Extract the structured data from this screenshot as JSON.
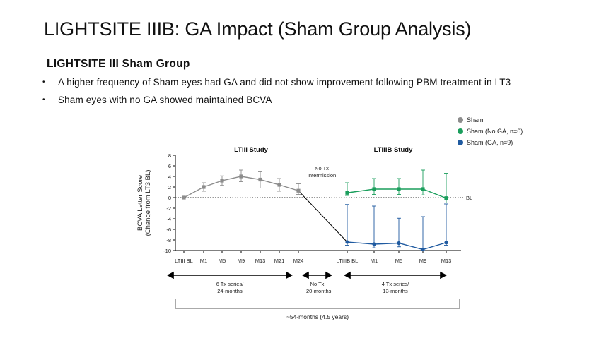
{
  "slide": {
    "title": "LIGHTSITE IIIB: GA Impact (Sham Group Analysis)",
    "subtitle": "LIGHTSITE III Sham Group",
    "bullets": [
      "A higher frequency of Sham eyes had GA and did not show improvement following PBM treatment in LT3",
      "Sham eyes with no GA showed maintained BCVA"
    ]
  },
  "chart_data": {
    "type": "line",
    "ylabel": "BCVA Letter Score\n(Change from LT3 BL)",
    "ylim": [
      -10,
      8
    ],
    "yticks": [
      8,
      6,
      4,
      2,
      0,
      -2,
      -4,
      -6,
      -8,
      -10
    ],
    "baseline_label": "BL",
    "panel_titles": [
      "LTIII Study",
      "LTIIIB Study"
    ],
    "intermission_label": "No Tx\nIntermission",
    "categories": [
      "LTIII BL",
      "M1",
      "M5",
      "M9",
      "M13",
      "M21",
      "M24",
      "LTIIIB BL",
      "M1",
      "M5",
      "M9",
      "M13"
    ],
    "series": [
      {
        "name": "Sham",
        "color": "#8c8c8c",
        "marker": "square",
        "x": [
          0,
          1,
          2,
          3,
          4,
          5,
          6
        ],
        "values": [
          0,
          2.0,
          3.2,
          4.0,
          3.4,
          2.4,
          1.3
        ],
        "error_low": [
          0,
          1.2,
          2.3,
          3.0,
          1.8,
          1.2,
          0.6
        ],
        "error_high": [
          0,
          2.8,
          4.1,
          5.2,
          5.0,
          3.6,
          2.6
        ]
      },
      {
        "name": "Sham (No GA, n=6)",
        "color": "#1a9e5c",
        "marker": "square",
        "x": [
          7,
          8,
          9,
          10,
          11
        ],
        "values": [
          0.9,
          1.6,
          1.6,
          1.6,
          -0.1
        ],
        "error_low": [
          0.4,
          0.6,
          0.6,
          0.5,
          -1.0
        ],
        "error_high": [
          2.8,
          3.6,
          3.6,
          5.2,
          4.6
        ]
      },
      {
        "name": "Sham (GA, n=9)",
        "color": "#1f5aa0",
        "marker": "circle",
        "x": [
          7,
          8,
          9,
          10,
          11
        ],
        "values": [
          -8.4,
          -8.8,
          -8.6,
          -9.8,
          -8.5
        ],
        "error_low": [
          -9.0,
          -9.5,
          -9.3,
          -10.0,
          -9.0
        ],
        "error_high": [
          -1.3,
          -1.6,
          -3.9,
          -3.6,
          -1.2
        ]
      }
    ],
    "connector": {
      "from_x": 6,
      "from_value": 1.3,
      "to_x": 7,
      "to_value": -8.4,
      "color": "#000000"
    },
    "legend": [
      "Sham",
      "Sham (No GA, n=6)",
      "Sham (GA, n=9)"
    ],
    "periods": [
      {
        "label": "6 Tx series/\n24-months",
        "from": 0,
        "to": 6
      },
      {
        "label": "No Tx\n~20-months",
        "from": 6,
        "to": 7
      },
      {
        "label": "4 Tx series/\n13-months",
        "from": 7,
        "to": 11
      }
    ],
    "total_label": "~54-months (4.5 years)"
  }
}
